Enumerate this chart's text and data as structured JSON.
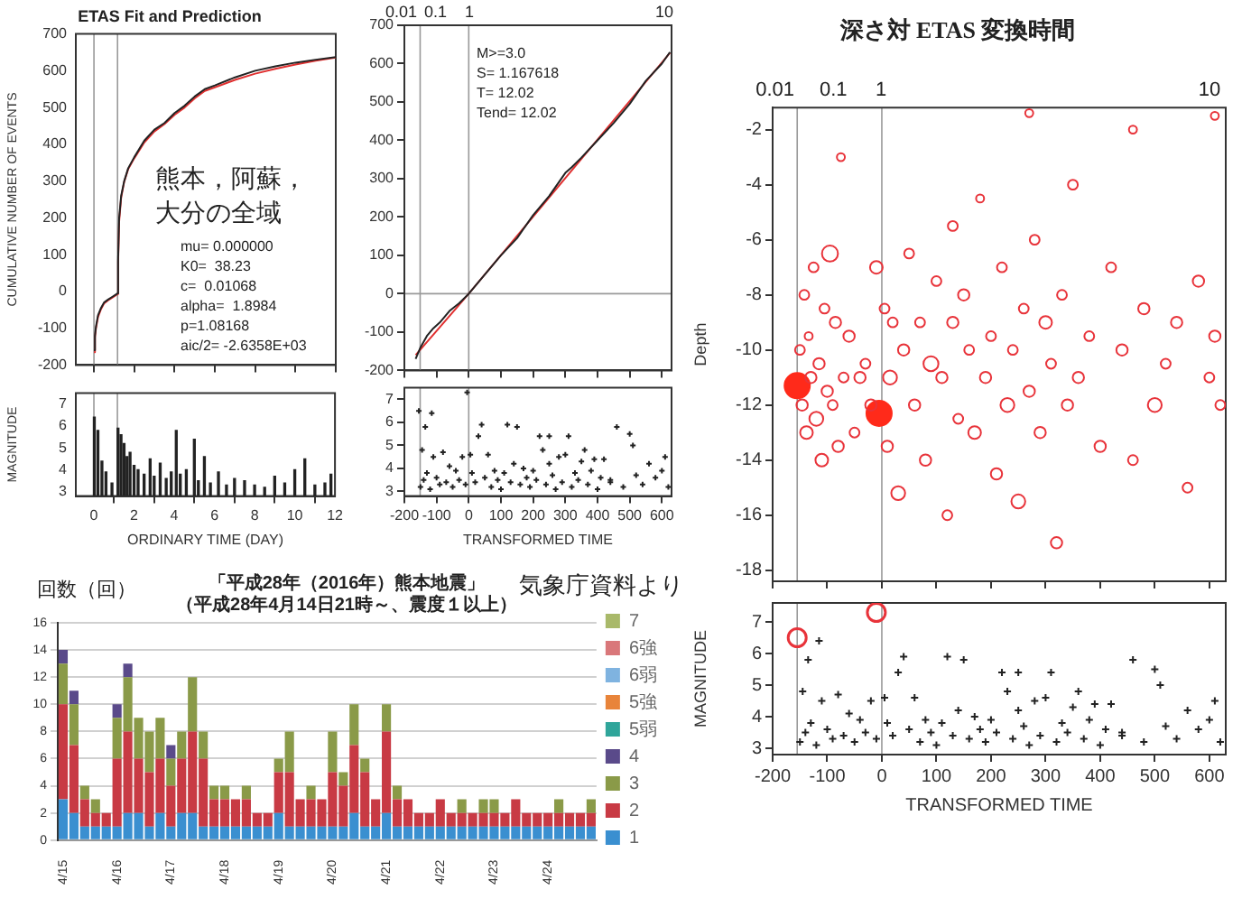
{
  "chart_data": [
    {
      "type": "line",
      "title": "ETAS Fit and Prediction",
      "ylabel": "CUMULATIVE NUMBER OF EVENTS",
      "xlim": [
        -0.9,
        12
      ],
      "xticks": [
        0,
        2,
        4,
        6,
        8,
        10,
        12
      ],
      "ylim": [
        -200,
        700
      ],
      "yticks": [
        -200,
        -100,
        0,
        100,
        200,
        300,
        400,
        500,
        600,
        700
      ],
      "grid": false,
      "tick_labels": "y",
      "x": [
        0,
        0.05,
        0.1,
        0.2,
        0.35,
        0.5,
        0.7,
        0.9,
        1.1,
        1.17,
        1.2,
        1.25,
        1.35,
        1.5,
        1.7,
        2.0,
        2.5,
        3.0,
        3.5,
        4.0,
        4.5,
        5.0,
        5.5,
        6.0,
        7.0,
        8.0,
        9.0,
        10.0,
        11.0,
        12.0
      ],
      "series": [
        {
          "color": "#222222",
          "values": [
            -160,
            -120,
            -95,
            -65,
            -45,
            -30,
            -22,
            -15,
            -8,
            -5,
            90,
            200,
            260,
            300,
            335,
            365,
            410,
            440,
            458,
            485,
            505,
            530,
            550,
            560,
            582,
            600,
            612,
            622,
            630,
            637
          ]
        },
        {
          "color": "#e03030",
          "values": [
            -165,
            -125,
            -100,
            -70,
            -48,
            -33,
            -24,
            -17,
            -10,
            -7,
            80,
            190,
            255,
            298,
            333,
            362,
            405,
            435,
            455,
            480,
            500,
            525,
            545,
            555,
            575,
            592,
            605,
            617,
            627,
            636
          ]
        }
      ],
      "ref_lines": [
        {
          "axis": "x",
          "value": 0
        },
        {
          "axis": "x",
          "value": 1.17
        }
      ],
      "annotations": [
        "熊本，阿蘇，",
        "大分の全域",
        "mu= 0.000000",
        "K0=  38.23",
        "c=  0.01068",
        "alpha=  1.8984",
        "p=1.08168",
        "aic/2= -2.6358E+03"
      ]
    },
    {
      "type": "bar",
      "xlabel": "ORDINARY TIME (DAY)",
      "ylabel": "MAGNITUDE",
      "xlim": [
        -0.9,
        12
      ],
      "xticks": [
        0,
        2,
        4,
        6,
        8,
        10,
        12
      ],
      "ylim": [
        2.8,
        7.5
      ],
      "yticks": [
        3,
        4,
        5,
        6,
        7
      ],
      "grid": false,
      "x": [
        0.02,
        0.2,
        0.4,
        0.6,
        0.9,
        1.2,
        1.35,
        1.5,
        1.65,
        1.8,
        2.0,
        2.2,
        2.5,
        2.8,
        3.0,
        3.3,
        3.6,
        3.85,
        4.1,
        4.3,
        4.6,
        5.0,
        5.2,
        5.5,
        5.8,
        6.2,
        6.6,
        7.0,
        7.5,
        8.0,
        8.5,
        9.0,
        9.5,
        10.0,
        10.5,
        11.0,
        11.5,
        11.8
      ],
      "series": [
        {
          "color": "#222222",
          "values": [
            6.4,
            5.8,
            4.4,
            3.9,
            3.4,
            5.9,
            5.6,
            5.2,
            4.6,
            4.8,
            4.2,
            4.0,
            3.8,
            4.5,
            3.7,
            4.3,
            3.6,
            3.9,
            5.8,
            3.8,
            4.0,
            5.4,
            3.5,
            4.6,
            3.4,
            3.9,
            3.3,
            3.6,
            3.5,
            3.3,
            3.2,
            3.7,
            3.4,
            4.0,
            4.5,
            3.3,
            3.4,
            3.8
          ]
        }
      ],
      "ref_lines": [
        {
          "axis": "x",
          "value": 0
        },
        {
          "axis": "x",
          "value": 1.17
        }
      ]
    },
    {
      "type": "line",
      "xlim": [
        -200,
        630
      ],
      "xticks": [
        -200,
        -100,
        0,
        100,
        200,
        300,
        400,
        500,
        600
      ],
      "ylim": [
        -200,
        700
      ],
      "yticks": [
        -200,
        -100,
        0,
        100,
        200,
        300,
        400,
        500,
        600,
        700
      ],
      "grid": false,
      "tick_labels": "y",
      "series": [
        {
          "color": "#222222",
          "x": [
            -165,
            -150,
            -130,
            -110,
            -90,
            -60,
            -30,
            0,
            30,
            60,
            100,
            150,
            200,
            250,
            300,
            320,
            350,
            400,
            450,
            500,
            550,
            600,
            625
          ],
          "values": [
            -170,
            -140,
            -110,
            -90,
            -75,
            -45,
            -25,
            0,
            30,
            60,
            100,
            145,
            205,
            255,
            315,
            330,
            355,
            400,
            445,
            495,
            555,
            600,
            630
          ]
        },
        {
          "color": "#e03030",
          "x": [
            -165,
            0,
            625
          ],
          "values": [
            -160,
            0,
            628
          ]
        }
      ],
      "ref_lines": [
        {
          "axis": "x",
          "value": -151
        },
        {
          "axis": "x",
          "value": 0
        },
        {
          "axis": "y",
          "value": 0
        }
      ],
      "annotations": [
        "M>=3.0",
        "S= 1.167618",
        "T= 12.02",
        "Tend= 12.02",
        "0.01",
        "0.1",
        "1",
        "10"
      ]
    },
    {
      "type": "scatter",
      "xlabel": "TRANSFORMED TIME",
      "xlim": [
        -200,
        630
      ],
      "xticks": [
        -200,
        -100,
        0,
        100,
        200,
        300,
        400,
        500,
        600
      ],
      "ylim": [
        2.8,
        7.5
      ],
      "yticks": [
        3,
        4,
        5,
        6,
        7
      ],
      "grid": false,
      "series": [
        {
          "color": "#222222",
          "marker": "cross",
          "x": [
            -150,
            -145,
            -140,
            -135,
            -130,
            -120,
            -110,
            -100,
            -90,
            -80,
            -70,
            -60,
            -50,
            -40,
            -30,
            -20,
            -10,
            5,
            10,
            20,
            30,
            40,
            50,
            60,
            70,
            80,
            90,
            100,
            110,
            120,
            130,
            140,
            150,
            160,
            170,
            180,
            190,
            200,
            210,
            220,
            230,
            240,
            250,
            260,
            270,
            280,
            290,
            300,
            310,
            320,
            330,
            340,
            350,
            360,
            370,
            380,
            390,
            400,
            410,
            420,
            440,
            460,
            480,
            500,
            510,
            520,
            540,
            560,
            580,
            600,
            610,
            620,
            -115,
            250,
            440,
            -155,
            -5
          ],
          "values": [
            3.2,
            4.8,
            3.5,
            5.8,
            3.8,
            3.1,
            4.5,
            3.6,
            3.3,
            4.7,
            3.4,
            4.1,
            3.2,
            3.9,
            3.5,
            4.5,
            3.3,
            4.6,
            3.8,
            3.4,
            5.4,
            5.9,
            3.6,
            4.6,
            3.2,
            3.9,
            3.5,
            3.1,
            3.8,
            5.9,
            3.4,
            4.2,
            5.8,
            3.3,
            4.0,
            3.6,
            3.2,
            3.9,
            3.5,
            5.4,
            4.8,
            3.3,
            5.4,
            3.7,
            3.1,
            4.5,
            3.4,
            4.6,
            5.4,
            3.2,
            3.8,
            3.5,
            4.3,
            4.8,
            3.3,
            3.9,
            4.4,
            3.1,
            3.6,
            4.4,
            3.5,
            5.8,
            3.2,
            5.5,
            5.0,
            3.7,
            3.3,
            4.2,
            3.6,
            3.9,
            4.5,
            3.2,
            6.4,
            4.2,
            3.4,
            6.5,
            7.3
          ]
        }
      ],
      "ref_lines": [
        {
          "axis": "x",
          "value": -151
        },
        {
          "axis": "x",
          "value": 0
        }
      ]
    },
    {
      "type": "bubble",
      "title": "深さ対 ETAS 変換時間",
      "ylabel": "Depth",
      "xlim": [
        -200,
        630
      ],
      "xticks": [
        -200,
        -100,
        0,
        100,
        200,
        300,
        400,
        500,
        600
      ],
      "ylim": [
        -18.4,
        -1.2
      ],
      "yticks": [
        -18,
        -16,
        -14,
        -12,
        -10,
        -8,
        -6,
        -4,
        -2
      ],
      "grid": false,
      "tick_labels": "y",
      "annotations": [
        "0.01",
        "0.1",
        "1",
        "10"
      ],
      "series": [
        {
          "color": "#e8333a",
          "x": [
            -150,
            -146,
            -142,
            -138,
            -134,
            -130,
            -125,
            -120,
            -115,
            -110,
            -105,
            -100,
            -95,
            -90,
            -85,
            -80,
            -75,
            -70,
            -60,
            -50,
            -40,
            -30,
            -20,
            -10,
            5,
            10,
            15,
            20,
            30,
            40,
            50,
            60,
            70,
            80,
            90,
            100,
            110,
            120,
            130,
            140,
            150,
            160,
            170,
            180,
            190,
            200,
            210,
            220,
            230,
            240,
            250,
            260,
            270,
            280,
            290,
            300,
            310,
            320,
            330,
            340,
            350,
            360,
            380,
            400,
            420,
            440,
            460,
            480,
            500,
            520,
            540,
            560,
            580,
            600,
            610,
            620,
            270,
            610,
            460,
            130
          ],
          "values": [
            -10,
            -12,
            -8,
            -13,
            -9.5,
            -11,
            -7,
            -12.5,
            -10.5,
            -14,
            -8.5,
            -11.5,
            -6.5,
            -12,
            -9,
            -13.5,
            -3,
            -11,
            -9.5,
            -13,
            -11,
            -10.5,
            -12,
            -7,
            -8.5,
            -13.5,
            -11,
            -9,
            -15.2,
            -10,
            -6.5,
            -12,
            -9,
            -14,
            -10.5,
            -7.5,
            -11,
            -16,
            -9,
            -12.5,
            -8,
            -10,
            -13,
            -4.5,
            -11,
            -9.5,
            -14.5,
            -7,
            -12,
            -10,
            -15.5,
            -8.5,
            -11.5,
            -6,
            -13,
            -9,
            -10.5,
            -17,
            -8,
            -12,
            -4,
            -11,
            -9.5,
            -13.5,
            -7,
            -10,
            -14,
            -8.5,
            -12,
            -10.5,
            -9,
            -15,
            -7.5,
            -11,
            -9.5,
            -12,
            -1.4,
            -1.5,
            -2,
            -5.5
          ],
          "sizes": [
            0.15,
            0.2,
            0.15,
            0.25,
            0.1,
            0.2,
            0.15,
            0.3,
            0.2,
            0.25,
            0.15,
            0.2,
            0.4,
            0.15,
            0.2,
            0.2,
            0.1,
            0.15,
            0.2,
            0.15,
            0.2,
            0.15,
            0.2,
            0.25,
            0.15,
            0.2,
            0.3,
            0.15,
            0.3,
            0.2,
            0.15,
            0.2,
            0.15,
            0.2,
            0.35,
            0.15,
            0.2,
            0.15,
            0.2,
            0.15,
            0.2,
            0.15,
            0.25,
            0.1,
            0.2,
            0.15,
            0.2,
            0.15,
            0.3,
            0.15,
            0.3,
            0.15,
            0.2,
            0.15,
            0.2,
            0.25,
            0.15,
            0.2,
            0.15,
            0.2,
            0.15,
            0.2,
            0.15,
            0.2,
            0.15,
            0.2,
            0.15,
            0.2,
            0.3,
            0.15,
            0.2,
            0.15,
            0.2,
            0.15,
            0.2,
            0.15,
            0.1,
            0.1,
            0.1,
            0.15
          ]
        },
        {
          "color": "#ff2a1a",
          "marker": "circle",
          "x": [
            -155,
            -5
          ],
          "values": [
            -11.3,
            -12.3
          ],
          "sizes": [
            1,
            1
          ]
        }
      ],
      "ref_lines": [
        {
          "axis": "x",
          "value": -155
        },
        {
          "axis": "x",
          "value": 0
        }
      ]
    },
    {
      "type": "scatter",
      "xlabel": "TRANSFORMED TIME",
      "ylabel": "MAGNITUDE",
      "xlim": [
        -200,
        630
      ],
      "xticks": [
        -200,
        -100,
        0,
        100,
        200,
        300,
        400,
        500,
        600
      ],
      "ylim": [
        2.8,
        7.6
      ],
      "yticks": [
        3,
        4,
        5,
        6,
        7
      ],
      "grid": false,
      "series": [
        {
          "color": "#222222",
          "marker": "cross",
          "x": [
            -150,
            -145,
            -140,
            -135,
            -130,
            -120,
            -110,
            -100,
            -90,
            -80,
            -70,
            -60,
            -50,
            -40,
            -30,
            -20,
            -10,
            5,
            10,
            20,
            30,
            40,
            50,
            60,
            70,
            80,
            90,
            100,
            110,
            120,
            130,
            140,
            150,
            160,
            170,
            180,
            190,
            200,
            210,
            220,
            230,
            240,
            250,
            260,
            270,
            280,
            290,
            300,
            310,
            320,
            330,
            340,
            350,
            360,
            370,
            380,
            390,
            400,
            410,
            420,
            440,
            460,
            480,
            500,
            510,
            520,
            540,
            560,
            580,
            600,
            610,
            620,
            -115,
            250,
            440
          ],
          "values": [
            3.2,
            4.8,
            3.5,
            5.8,
            3.8,
            3.1,
            4.5,
            3.6,
            3.3,
            4.7,
            3.4,
            4.1,
            3.2,
            3.9,
            3.5,
            4.5,
            3.3,
            4.6,
            3.8,
            3.4,
            5.4,
            5.9,
            3.6,
            4.6,
            3.2,
            3.9,
            3.5,
            3.1,
            3.8,
            5.9,
            3.4,
            4.2,
            5.8,
            3.3,
            4.0,
            3.6,
            3.2,
            3.9,
            3.5,
            5.4,
            4.8,
            3.3,
            5.4,
            3.7,
            3.1,
            4.5,
            3.4,
            4.6,
            5.4,
            3.2,
            3.8,
            3.5,
            4.3,
            4.8,
            3.3,
            3.9,
            4.4,
            3.1,
            3.6,
            4.4,
            3.5,
            5.8,
            3.2,
            5.5,
            5.0,
            3.7,
            3.3,
            4.2,
            3.6,
            3.9,
            4.5,
            3.2,
            6.4,
            4.2,
            3.4
          ]
        },
        {
          "color": "#e8333a",
          "marker": "circle",
          "x": [
            -155,
            -10
          ],
          "values": [
            6.5,
            7.3
          ]
        }
      ],
      "ref_lines": [
        {
          "axis": "x",
          "value": -155
        },
        {
          "axis": "x",
          "value": 0
        }
      ]
    },
    {
      "type": "bar",
      "title": "「平成28年（2016年）熊本地震」",
      "subtitle": "（平成28年4月14日21時～、震度１以上）",
      "ylabel": "回数（回）",
      "stacked": true,
      "grid": "y",
      "legend": "right",
      "ylim": [
        0,
        16
      ],
      "yticks": [
        0,
        2,
        4,
        6,
        8,
        10,
        12,
        14,
        16
      ],
      "annotations": [
        "気象庁資料より"
      ],
      "categories": [
        "4/15",
        null,
        null,
        null,
        null,
        "4/16",
        null,
        null,
        null,
        null,
        "4/17",
        null,
        null,
        null,
        null,
        "4/18",
        null,
        null,
        null,
        null,
        "4/19",
        null,
        null,
        null,
        null,
        "4/20",
        null,
        null,
        null,
        null,
        "4/21",
        null,
        null,
        null,
        null,
        "4/22",
        null,
        null,
        null,
        null,
        "4/23",
        null,
        null,
        null,
        null,
        "4/24",
        null,
        null,
        null,
        null
      ],
      "series": [
        {
          "name": "1",
          "color": "#3a8fd0",
          "values": [
            3,
            2,
            1,
            1,
            1,
            1,
            2,
            2,
            1,
            2,
            1,
            2,
            2,
            1,
            1,
            1,
            1,
            1,
            1,
            1,
            2,
            1,
            1,
            1,
            1,
            1,
            1,
            2,
            1,
            1,
            2,
            1,
            1,
            1,
            1,
            1,
            1,
            1,
            1,
            1,
            1,
            1,
            1,
            1,
            1,
            1,
            1,
            1,
            1,
            1
          ]
        },
        {
          "name": "2",
          "color": "#c83a44",
          "values": [
            7,
            5,
            2,
            1,
            1,
            5,
            6,
            4,
            4,
            4,
            3,
            4,
            6,
            5,
            2,
            2,
            2,
            2,
            1,
            1,
            3,
            4,
            2,
            2,
            2,
            4,
            3,
            5,
            4,
            2,
            6,
            2,
            2,
            1,
            1,
            2,
            1,
            1,
            1,
            1,
            1,
            1,
            2,
            1,
            1,
            1,
            1,
            1,
            1,
            1
          ]
        },
        {
          "name": "3",
          "color": "#8a9a48",
          "values": [
            3,
            3,
            1,
            1,
            0,
            3,
            4,
            3,
            3,
            3,
            2,
            2,
            4,
            2,
            1,
            1,
            0,
            1,
            0,
            0,
            1,
            3,
            0,
            1,
            0,
            3,
            1,
            3,
            1,
            0,
            2,
            1,
            0,
            0,
            0,
            0,
            0,
            1,
            0,
            1,
            1,
            0,
            0,
            0,
            0,
            0,
            1,
            0,
            0,
            1
          ]
        },
        {
          "name": "4",
          "color": "#5a4a8a",
          "values": [
            1,
            1,
            0,
            0,
            0,
            1,
            1,
            0,
            0,
            0,
            1,
            0,
            0,
            0,
            0,
            0,
            0,
            0,
            0,
            0,
            0,
            0,
            0,
            0,
            0,
            0,
            0,
            0,
            0,
            0,
            0,
            0,
            0,
            0,
            0,
            0,
            0,
            0,
            0,
            0,
            0,
            0,
            0,
            0,
            0,
            0,
            0,
            0,
            0,
            0
          ]
        },
        {
          "name": "5弱",
          "color": "#2fa59a",
          "values": [
            0,
            0,
            0,
            0,
            0,
            0,
            0,
            0,
            0,
            0,
            0,
            0,
            0,
            0,
            0,
            0,
            0,
            0,
            0,
            0,
            0,
            0,
            0,
            0,
            0,
            0,
            0,
            0,
            0,
            0,
            0,
            0,
            0,
            0,
            0,
            0,
            0,
            0,
            0,
            0,
            0,
            0,
            0,
            0,
            0,
            0,
            0,
            0,
            0,
            0
          ]
        },
        {
          "name": "5強",
          "color": "#e8843a",
          "values": [
            0,
            0,
            0,
            0,
            0,
            0,
            0,
            0,
            0,
            0,
            0,
            0,
            0,
            0,
            0,
            0,
            0,
            0,
            0,
            0,
            0,
            0,
            0,
            0,
            0,
            0,
            0,
            0,
            0,
            0,
            0,
            0,
            0,
            0,
            0,
            0,
            0,
            0,
            0,
            0,
            0,
            0,
            0,
            0,
            0,
            0,
            0,
            0,
            0,
            0
          ]
        },
        {
          "name": "6弱",
          "color": "#7fb3e0",
          "values": [
            0,
            0,
            0,
            0,
            0,
            0,
            0,
            0,
            0,
            0,
            0,
            0,
            0,
            0,
            0,
            0,
            0,
            0,
            0,
            0,
            0,
            0,
            0,
            0,
            0,
            0,
            0,
            0,
            0,
            0,
            0,
            0,
            0,
            0,
            0,
            0,
            0,
            0,
            0,
            0,
            0,
            0,
            0,
            0,
            0,
            0,
            0,
            0,
            0,
            0
          ]
        },
        {
          "name": "6強",
          "color": "#d9777a",
          "values": [
            0,
            0,
            0,
            0,
            0,
            0,
            0,
            0,
            0,
            0,
            0,
            0,
            0,
            0,
            0,
            0,
            0,
            0,
            0,
            0,
            0,
            0,
            0,
            0,
            0,
            0,
            0,
            0,
            0,
            0,
            0,
            0,
            0,
            0,
            0,
            0,
            0,
            0,
            0,
            0,
            0,
            0,
            0,
            0,
            0,
            0,
            0,
            0,
            0,
            0
          ]
        },
        {
          "name": "7",
          "color": "#a9b96a",
          "values": [
            0,
            0,
            0,
            0,
            0,
            0,
            0,
            0,
            0,
            0,
            0,
            0,
            0,
            0,
            0,
            0,
            0,
            0,
            0,
            0,
            0,
            0,
            0,
            0,
            0,
            0,
            0,
            0,
            0,
            0,
            0,
            0,
            0,
            0,
            0,
            0,
            0,
            0,
            0,
            0,
            0,
            0,
            0,
            0,
            0,
            0,
            0,
            0,
            0,
            0
          ]
        }
      ]
    }
  ]
}
